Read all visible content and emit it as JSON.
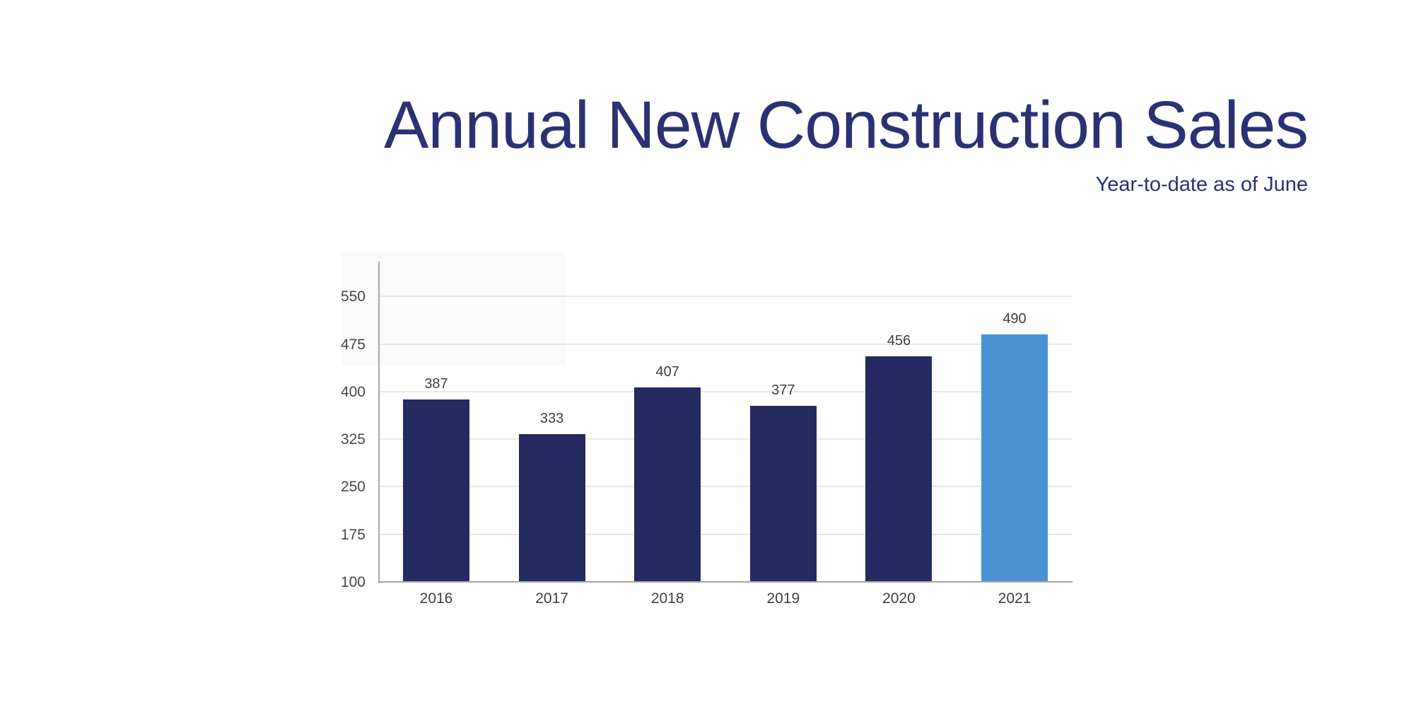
{
  "header": {
    "title": "Annual New Construction Sales",
    "subtitle": "Year-to-date as of June"
  },
  "chart_data": {
    "type": "bar",
    "title": "Annual New Construction Sales",
    "subtitle": "Year-to-date as of June",
    "categories": [
      "2016",
      "2017",
      "2018",
      "2019",
      "2020",
      "2021"
    ],
    "values": [
      387,
      333,
      407,
      377,
      456,
      490
    ],
    "data_labels": [
      "387",
      "333",
      "407",
      "377",
      "456",
      "490"
    ],
    "highlight_index": 5,
    "colors": {
      "bar_default": "#252a61",
      "bar_highlight": "#4b92d3",
      "title_text": "#2b3173",
      "gridline": "#e8e8eb",
      "axis_line": "#a6a6a6",
      "label_text": "#3f3f3f"
    },
    "xlabel": "",
    "ylabel": "",
    "y_ticks": [
      100,
      175,
      250,
      325,
      400,
      475,
      550
    ],
    "ylim": [
      100,
      560
    ],
    "grid": "horizontal-only",
    "legend": false,
    "bar_labels_position": "above-bar"
  }
}
